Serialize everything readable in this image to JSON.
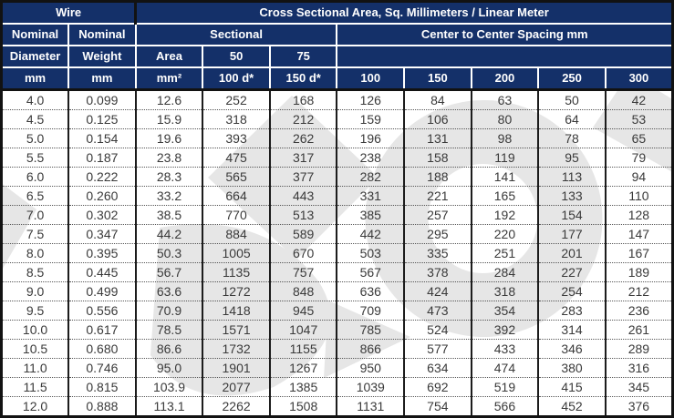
{
  "accent_colors": {
    "header_background": "#143069",
    "header_text": "#ffffff",
    "body_text": "#3a3a3a",
    "grid_line": "#1c1c1c",
    "watermark_gray": "#dedede"
  },
  "table": {
    "header": {
      "wire": "Wire",
      "cross": "Cross Sectional Area, Sq. Millimeters / Linear Meter",
      "col1": [
        "Nominal",
        "Diameter",
        "mm"
      ],
      "col2": [
        "Nominal",
        "Weight",
        "mm"
      ],
      "sectional": "Sectional",
      "sub": {
        "area": [
          "Area",
          "mm²"
        ],
        "c50": [
          "50",
          "100 d*"
        ],
        "c75": [
          "75",
          "150 d*"
        ]
      },
      "spacing": "Center to Center Spacing mm",
      "spacing_blank": "",
      "spacing_values": [
        "100",
        "150",
        "200",
        "250",
        "300"
      ]
    },
    "rows": [
      [
        "4.0",
        "0.099",
        "12.6",
        "252",
        "168",
        "126",
        "84",
        "63",
        "50",
        "42"
      ],
      [
        "4.5",
        "0.125",
        "15.9",
        "318",
        "212",
        "159",
        "106",
        "80",
        "64",
        "53"
      ],
      [
        "5.0",
        "0.154",
        "19.6",
        "393",
        "262",
        "196",
        "131",
        "98",
        "78",
        "65"
      ],
      [
        "5.5",
        "0.187",
        "23.8",
        "475",
        "317",
        "238",
        "158",
        "119",
        "95",
        "79"
      ],
      [
        "6.0",
        "0.222",
        "28.3",
        "565",
        "377",
        "282",
        "188",
        "141",
        "113",
        "94"
      ],
      [
        "6.5",
        "0.260",
        "33.2",
        "664",
        "443",
        "331",
        "221",
        "165",
        "133",
        "110"
      ],
      [
        "7.0",
        "0.302",
        "38.5",
        "770",
        "513",
        "385",
        "257",
        "192",
        "154",
        "128"
      ],
      [
        "7.5",
        "0.347",
        "44.2",
        "884",
        "589",
        "442",
        "295",
        "220",
        "177",
        "147"
      ],
      [
        "8.0",
        "0.395",
        "50.3",
        "1005",
        "670",
        "503",
        "335",
        "251",
        "201",
        "167"
      ],
      [
        "8.5",
        "0.445",
        "56.7",
        "1135",
        "757",
        "567",
        "378",
        "284",
        "227",
        "189"
      ],
      [
        "9.0",
        "0.499",
        "63.6",
        "1272",
        "848",
        "636",
        "424",
        "318",
        "254",
        "212"
      ],
      [
        "9.5",
        "0.556",
        "70.9",
        "1418",
        "945",
        "709",
        "473",
        "354",
        "283",
        "236"
      ],
      [
        "10.0",
        "0.617",
        "78.5",
        "1571",
        "1047",
        "785",
        "524",
        "392",
        "314",
        "261"
      ],
      [
        "10.5",
        "0.680",
        "86.6",
        "1732",
        "1155",
        "866",
        "577",
        "433",
        "346",
        "289"
      ],
      [
        "11.0",
        "0.746",
        "95.0",
        "1901",
        "1267",
        "950",
        "634",
        "474",
        "380",
        "316"
      ],
      [
        "11.5",
        "0.815",
        "103.9",
        "2077",
        "1385",
        "1039",
        "692",
        "519",
        "415",
        "345"
      ],
      [
        "12.0",
        "0.888",
        "113.1",
        "2262",
        "1508",
        "1131",
        "754",
        "566",
        "452",
        "376"
      ]
    ]
  }
}
